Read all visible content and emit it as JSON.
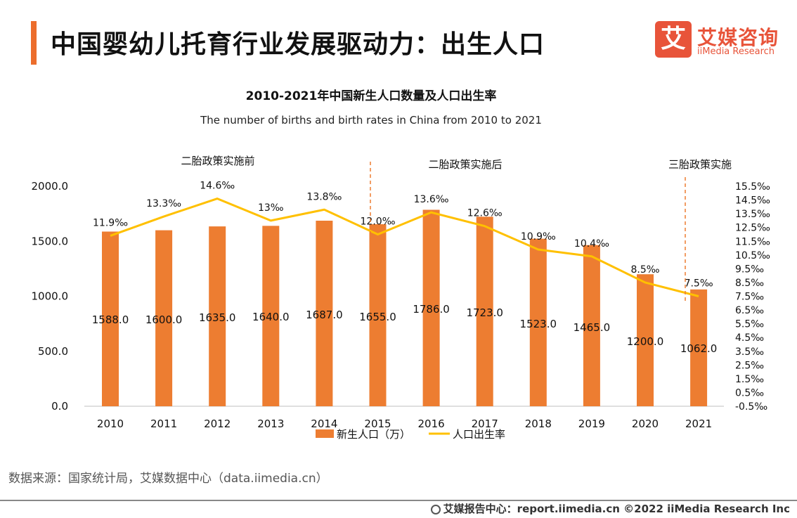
{
  "header": {
    "title": "中国婴幼儿托育行业发展驱动力：出生人口"
  },
  "logo": {
    "mark": "艾",
    "name_cn": "艾媒咨询",
    "name_en": "iiMedia Research"
  },
  "chart_data": {
    "type": "bar",
    "title": "2010-2021年中国新生人口数量及人口出生率",
    "subtitle": "The number of births and birth rates in China from 2010 to 2021",
    "categories": [
      "2010",
      "2011",
      "2012",
      "2013",
      "2014",
      "2015",
      "2016",
      "2017",
      "2018",
      "2019",
      "2020",
      "2021"
    ],
    "series": [
      {
        "name": "新生人口（万）",
        "type": "bar",
        "axis": "left",
        "color": "#ed7d31",
        "values": [
          1588.0,
          1600.0,
          1635.0,
          1640.0,
          1687.0,
          1655.0,
          1786.0,
          1723.0,
          1523.0,
          1465.0,
          1200.0,
          1062.0
        ],
        "labels": [
          "1588.0",
          "1600.0",
          "1635.0",
          "1640.0",
          "1687.0",
          "1655.0",
          "1786.0",
          "1723.0",
          "1523.0",
          "1465.0",
          "1200.0",
          "1062.0"
        ]
      },
      {
        "name": "人口出生率",
        "type": "line",
        "axis": "right",
        "color": "#ffc000",
        "values": [
          11.9,
          13.3,
          14.6,
          13.0,
          13.8,
          12.0,
          13.6,
          12.6,
          10.9,
          10.4,
          8.5,
          7.5
        ],
        "labels": [
          "11.9‰",
          "13.3‰",
          "14.6‰",
          "13‰",
          "13.8‰",
          "12.0‰",
          "13.6‰",
          "12.6‰",
          "10.9‰",
          "10.4‰",
          "8.5‰",
          "7.5‰"
        ]
      }
    ],
    "y_left": {
      "min": 0,
      "max": 2000,
      "ticks": [
        "0.0",
        "500.0",
        "1000.0",
        "1500.0",
        "2000.0"
      ]
    },
    "y_right": {
      "min": -0.5,
      "max": 15.5,
      "ticks": [
        "-0.5‰",
        "0.5‰",
        "1.5‰",
        "2.5‰",
        "3.5‰",
        "4.5‰",
        "5.5‰",
        "6.5‰",
        "7.5‰",
        "8.5‰",
        "9.5‰",
        "10.5‰",
        "11.5‰",
        "12.5‰",
        "13.5‰",
        "14.5‰",
        "15.5‰"
      ]
    },
    "annotations": [
      {
        "text": "二胎政策实施前",
        "position": "above 2010-2014",
        "divider_after": ""
      },
      {
        "text": "二胎政策实施后",
        "position": "above 2016-2019",
        "divider_before": "2015"
      },
      {
        "text": "三胎政策实施",
        "position": "above 2021",
        "divider_before": "2021"
      }
    ],
    "legend": {
      "position": "bottom",
      "items": [
        "新生人口（万）",
        "人口出生率"
      ]
    },
    "grid": false
  },
  "source": "数据来源：国家统计局，艾媒数据中心（data.iimedia.cn）",
  "footer": "艾媒报告中心：report.iimedia.cn  ©2022  iiMedia Research  Inc"
}
